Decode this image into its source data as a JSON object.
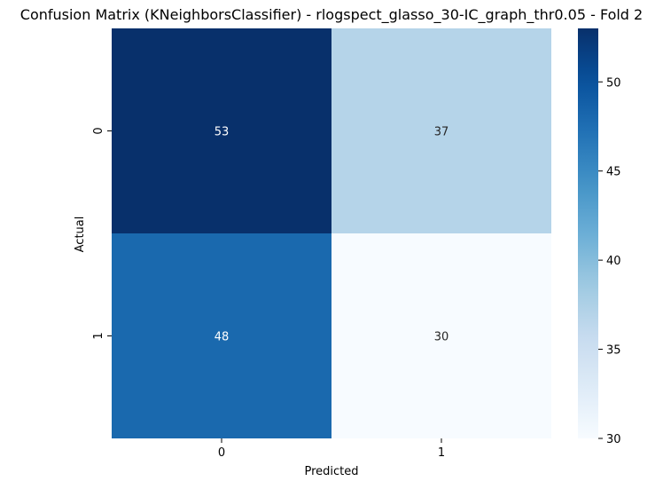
{
  "chart_data": {
    "type": "heatmap",
    "title": "Confusion Matrix (KNeighborsClassifier) - rlogspect_glasso_30-IC_graph_thr0.05 - Fold 2",
    "xlabel": "Predicted",
    "ylabel": "Actual",
    "x_categories": [
      "0",
      "1"
    ],
    "y_categories": [
      "0",
      "1"
    ],
    "values": [
      [
        53,
        37
      ],
      [
        48,
        30
      ]
    ],
    "colormap": "Blues",
    "color_range": [
      30,
      53
    ],
    "colorbar_ticks": [
      30,
      35,
      40,
      45,
      50
    ],
    "annotated": true,
    "grid": false
  }
}
